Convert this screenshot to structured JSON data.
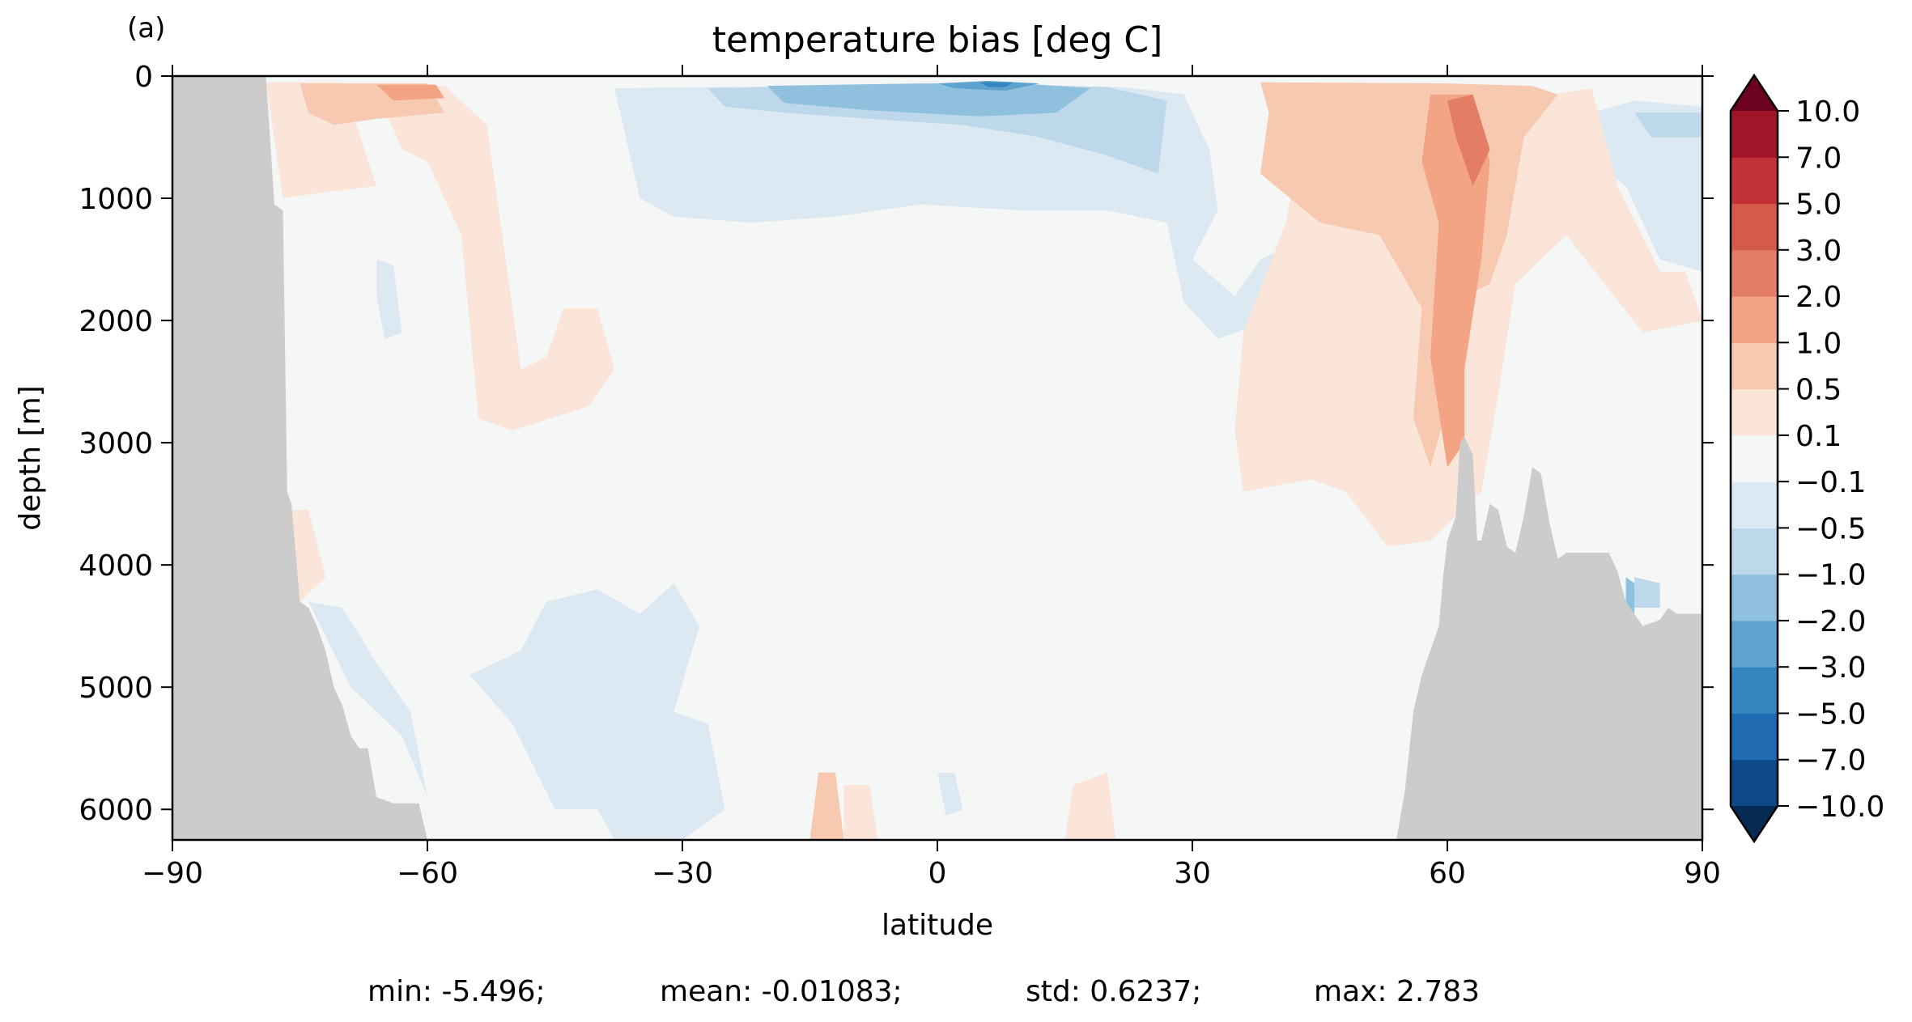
{
  "panel_label": "(a)",
  "chart_data": {
    "type": "heatmap",
    "title": "temperature bias [deg C]",
    "xlabel": "latitude",
    "ylabel": "depth [m]",
    "xlim": [
      -90,
      90
    ],
    "ylim": [
      6250,
      0
    ],
    "y_inverted": true,
    "x_ticks": [
      -90,
      -60,
      -30,
      0,
      30,
      60,
      90
    ],
    "x_tick_labels": [
      "−90",
      "−60",
      "−30",
      "0",
      "30",
      "60",
      "90"
    ],
    "y_ticks": [
      0,
      1000,
      2000,
      3000,
      4000,
      5000,
      6000
    ],
    "y_tick_labels": [
      "0",
      "1000",
      "2000",
      "3000",
      "4000",
      "5000",
      "6000"
    ],
    "colorbar": {
      "extend": "both",
      "levels": [
        -10.0,
        -7.0,
        -5.0,
        -3.0,
        -2.0,
        -1.0,
        -0.5,
        -0.1,
        0.1,
        0.5,
        1.0,
        2.0,
        3.0,
        5.0,
        7.0,
        10.0
      ],
      "tick_labels": [
        "−10.0",
        "−7.0",
        "−5.0",
        "−3.0",
        "−2.0",
        "−1.0",
        "−0.5",
        "−0.1",
        "0.1",
        "0.5",
        "1.0",
        "2.0",
        "3.0",
        "5.0",
        "7.0",
        "10.0"
      ],
      "colors": [
        "#0e4a87",
        "#1f6ab0",
        "#3585c0",
        "#5ea3cf",
        "#8fc1de",
        "#bcd8ea",
        "#dde9f2",
        "#f5f6f6",
        "#fbe4d8",
        "#f8c9b1",
        "#f2a484",
        "#e47d66",
        "#d45a4c",
        "#c33237",
        "#a11529"
      ],
      "under_color": "#062b53",
      "over_color": "#6c0120"
    },
    "land_color": "#cccccc",
    "bathymetry_left": [
      [
        -90,
        0
      ],
      [
        -79,
        0
      ],
      [
        -78,
        1050
      ],
      [
        -77,
        1100
      ],
      [
        -76.5,
        3400
      ],
      [
        -76,
        3500
      ],
      [
        -75,
        4300
      ],
      [
        -74,
        4350
      ],
      [
        -73,
        4500
      ],
      [
        -72,
        4700
      ],
      [
        -71,
        5000
      ],
      [
        -70,
        5150
      ],
      [
        -69,
        5400
      ],
      [
        -68,
        5500
      ],
      [
        -67,
        5500
      ],
      [
        -66,
        5900
      ],
      [
        -64,
        5950
      ],
      [
        -63,
        5950
      ],
      [
        -62,
        5950
      ],
      [
        -61,
        5950
      ],
      [
        -60,
        6250
      ]
    ],
    "bathymetry_right": [
      [
        54,
        6250
      ],
      [
        55,
        5850
      ],
      [
        56,
        5200
      ],
      [
        57,
        4900
      ],
      [
        58,
        4700
      ],
      [
        59,
        4500
      ],
      [
        59.5,
        4100
      ],
      [
        60,
        3800
      ],
      [
        61,
        3600
      ],
      [
        61.5,
        3000
      ],
      [
        62,
        2950
      ],
      [
        63,
        3100
      ],
      [
        63.5,
        3800
      ],
      [
        64,
        3800
      ],
      [
        65,
        3500
      ],
      [
        66,
        3550
      ],
      [
        67,
        3850
      ],
      [
        68,
        3900
      ],
      [
        69,
        3600
      ],
      [
        70,
        3200
      ],
      [
        71,
        3250
      ],
      [
        72,
        3650
      ],
      [
        73,
        3950
      ],
      [
        74,
        3900
      ],
      [
        79,
        3900
      ],
      [
        80,
        4050
      ],
      [
        81,
        4300
      ],
      [
        82,
        4400
      ],
      [
        83,
        4500
      ],
      [
        85,
        4450
      ],
      [
        86,
        4350
      ],
      [
        87,
        4400
      ],
      [
        90,
        4400
      ]
    ],
    "bias_regions": [
      {
        "value": 0.3,
        "polygon": [
          [
            -79,
            50
          ],
          [
            -70,
            50
          ],
          [
            -66,
            900
          ],
          [
            -72,
            950
          ],
          [
            -77,
            1000
          ]
        ]
      },
      {
        "value": 0.3,
        "polygon": [
          [
            -66,
            100
          ],
          [
            -58,
            80
          ],
          [
            -53,
            400
          ],
          [
            -51,
            1400
          ],
          [
            -50,
            1900
          ],
          [
            -49,
            2400
          ],
          [
            -46,
            2300
          ],
          [
            -44,
            1900
          ],
          [
            -40,
            1900
          ],
          [
            -38,
            2400
          ],
          [
            -41,
            2700
          ],
          [
            -50,
            2900
          ],
          [
            -54,
            2800
          ],
          [
            -56,
            1300
          ],
          [
            -60,
            700
          ],
          [
            -63,
            600
          ]
        ]
      },
      {
        "value": 0.3,
        "polygon": [
          [
            -76,
            3550
          ],
          [
            -74,
            3550
          ],
          [
            -72,
            4100
          ],
          [
            -75,
            4300
          ],
          [
            -76,
            4250
          ]
        ]
      },
      {
        "value": 0.7,
        "polygon": [
          [
            -75,
            60
          ],
          [
            -60,
            60
          ],
          [
            -58,
            300
          ],
          [
            -66,
            350
          ],
          [
            -71,
            400
          ],
          [
            -74,
            300
          ]
        ]
      },
      {
        "value": 1.5,
        "polygon": [
          [
            -66,
            70
          ],
          [
            -59,
            70
          ],
          [
            -58,
            180
          ],
          [
            -64,
            200
          ]
        ]
      },
      {
        "value": -0.3,
        "polygon": [
          [
            -38,
            100
          ],
          [
            -2,
            70
          ],
          [
            12,
            80
          ],
          [
            22,
            90
          ],
          [
            29,
            150
          ],
          [
            32,
            600
          ],
          [
            33,
            1100
          ],
          [
            30,
            1500
          ],
          [
            35,
            1800
          ],
          [
            38,
            1500
          ],
          [
            44,
            1300
          ],
          [
            44,
            1700
          ],
          [
            39,
            2000
          ],
          [
            33,
            2150
          ],
          [
            29,
            1850
          ],
          [
            27,
            1200
          ],
          [
            20,
            1100
          ],
          [
            10,
            1100
          ],
          [
            -2,
            1050
          ],
          [
            -12,
            1150
          ],
          [
            -22,
            1200
          ],
          [
            -31,
            1150
          ],
          [
            -35,
            1000
          ]
        ]
      },
      {
        "value": -0.7,
        "polygon": [
          [
            -27,
            100
          ],
          [
            -5,
            70
          ],
          [
            10,
            70
          ],
          [
            20,
            90
          ],
          [
            27,
            200
          ],
          [
            26,
            800
          ],
          [
            20,
            650
          ],
          [
            12,
            500
          ],
          [
            3,
            400
          ],
          [
            -8,
            350
          ],
          [
            -18,
            300
          ],
          [
            -25,
            250
          ]
        ]
      },
      {
        "value": -1.5,
        "polygon": [
          [
            -20,
            80
          ],
          [
            -2,
            60
          ],
          [
            10,
            60
          ],
          [
            18,
            100
          ],
          [
            14,
            300
          ],
          [
            5,
            330
          ],
          [
            -8,
            280
          ],
          [
            -18,
            220
          ]
        ]
      },
      {
        "value": -2.5,
        "polygon": [
          [
            0,
            60
          ],
          [
            6,
            40
          ],
          [
            12,
            60
          ],
          [
            8,
            120
          ],
          [
            2,
            100
          ]
        ]
      },
      {
        "value": -4.0,
        "polygon": [
          [
            5,
            50
          ],
          [
            9,
            50
          ],
          [
            8,
            90
          ],
          [
            6,
            90
          ]
        ]
      },
      {
        "value": -0.3,
        "polygon": [
          [
            -49,
            4700
          ],
          [
            -46,
            4300
          ],
          [
            -40,
            4200
          ],
          [
            -35,
            4400
          ],
          [
            -31,
            4150
          ],
          [
            -28,
            4500
          ],
          [
            -31,
            5200
          ],
          [
            -27,
            5300
          ],
          [
            -25,
            6000
          ],
          [
            -30,
            6250
          ],
          [
            -38,
            6250
          ],
          [
            -40,
            6000
          ],
          [
            -45,
            6000
          ],
          [
            -50,
            5300
          ],
          [
            -55,
            4900
          ]
        ]
      },
      {
        "value": -0.3,
        "polygon": [
          [
            -74,
            4300
          ],
          [
            -70,
            4350
          ],
          [
            -66,
            4800
          ],
          [
            -62,
            5200
          ],
          [
            -60,
            5900
          ],
          [
            -63,
            5400
          ],
          [
            -69,
            5000
          ]
        ]
      },
      {
        "value": -0.3,
        "polygon": [
          [
            -66,
            1500
          ],
          [
            -64,
            1550
          ],
          [
            -63,
            2100
          ],
          [
            -65,
            2150
          ],
          [
            -66,
            1800
          ]
        ]
      },
      {
        "value": -0.3,
        "polygon": [
          [
            0,
            5700
          ],
          [
            2,
            5700
          ],
          [
            3,
            6000
          ],
          [
            1,
            6050
          ]
        ]
      },
      {
        "value": -0.3,
        "polygon": [
          [
            77,
            300
          ],
          [
            82,
            200
          ],
          [
            90,
            250
          ],
          [
            90,
            1600
          ],
          [
            85,
            1500
          ],
          [
            81,
            900
          ],
          [
            77,
            700
          ]
        ]
      },
      {
        "value": -0.7,
        "polygon": [
          [
            82,
            300
          ],
          [
            90,
            300
          ],
          [
            90,
            500
          ],
          [
            84,
            500
          ]
        ]
      },
      {
        "value": 0.3,
        "polygon": [
          [
            44,
            80
          ],
          [
            58,
            80
          ],
          [
            68,
            200
          ],
          [
            77,
            100
          ],
          [
            80,
            900
          ],
          [
            85,
            1600
          ],
          [
            88,
            1600
          ],
          [
            90,
            2000
          ],
          [
            83,
            2100
          ],
          [
            74,
            1300
          ],
          [
            68,
            1700
          ],
          [
            66,
            2600
          ],
          [
            64,
            3400
          ],
          [
            58,
            3800
          ],
          [
            53,
            3850
          ],
          [
            48,
            3400
          ],
          [
            44,
            3300
          ],
          [
            36,
            3400
          ],
          [
            35,
            2900
          ],
          [
            36,
            2100
          ],
          [
            41,
            1200
          ]
        ]
      },
      {
        "value": 0.7,
        "polygon": [
          [
            38,
            50
          ],
          [
            60,
            60
          ],
          [
            70,
            80
          ],
          [
            73,
            150
          ],
          [
            69,
            500
          ],
          [
            67,
            1300
          ],
          [
            65,
            1700
          ],
          [
            62,
            1800
          ],
          [
            60,
            2700
          ],
          [
            58,
            3200
          ],
          [
            56,
            2800
          ],
          [
            57,
            1900
          ],
          [
            52,
            1300
          ],
          [
            45,
            1200
          ],
          [
            38,
            800
          ],
          [
            39,
            300
          ]
        ]
      },
      {
        "value": 0.7,
        "polygon": [
          [
            -14,
            5700
          ],
          [
            -12,
            5700
          ],
          [
            -11,
            6250
          ],
          [
            -15,
            6250
          ]
        ]
      },
      {
        "value": 0.3,
        "polygon": [
          [
            -11,
            5800
          ],
          [
            -8,
            5800
          ],
          [
            -7,
            6250
          ],
          [
            -11,
            6250
          ]
        ]
      },
      {
        "value": 0.3,
        "polygon": [
          [
            16,
            5800
          ],
          [
            20,
            5700
          ],
          [
            21,
            6250
          ],
          [
            15,
            6250
          ]
        ]
      },
      {
        "value": 1.5,
        "polygon": [
          [
            58,
            150
          ],
          [
            63,
            150
          ],
          [
            65,
            700
          ],
          [
            64,
            1500
          ],
          [
            62,
            2400
          ],
          [
            62,
            3000
          ],
          [
            60,
            3200
          ],
          [
            58,
            2300
          ],
          [
            59,
            1200
          ],
          [
            57,
            700
          ]
        ]
      },
      {
        "value": 2.5,
        "polygon": [
          [
            60,
            200
          ],
          [
            63,
            150
          ],
          [
            65,
            600
          ],
          [
            63,
            900
          ],
          [
            61,
            500
          ]
        ]
      },
      {
        "value": -1.5,
        "polygon": [
          [
            81,
            4100
          ],
          [
            82,
            4150
          ],
          [
            82,
            4550
          ],
          [
            81,
            4500
          ]
        ]
      },
      {
        "value": -0.7,
        "polygon": [
          [
            82,
            4100
          ],
          [
            85,
            4150
          ],
          [
            85,
            4350
          ],
          [
            82,
            4350
          ]
        ]
      }
    ]
  },
  "stats_line": {
    "min": "min: -5.496;",
    "mean": "mean: -0.01083;",
    "std": "std: 0.6237;",
    "max": "max: 2.783"
  }
}
